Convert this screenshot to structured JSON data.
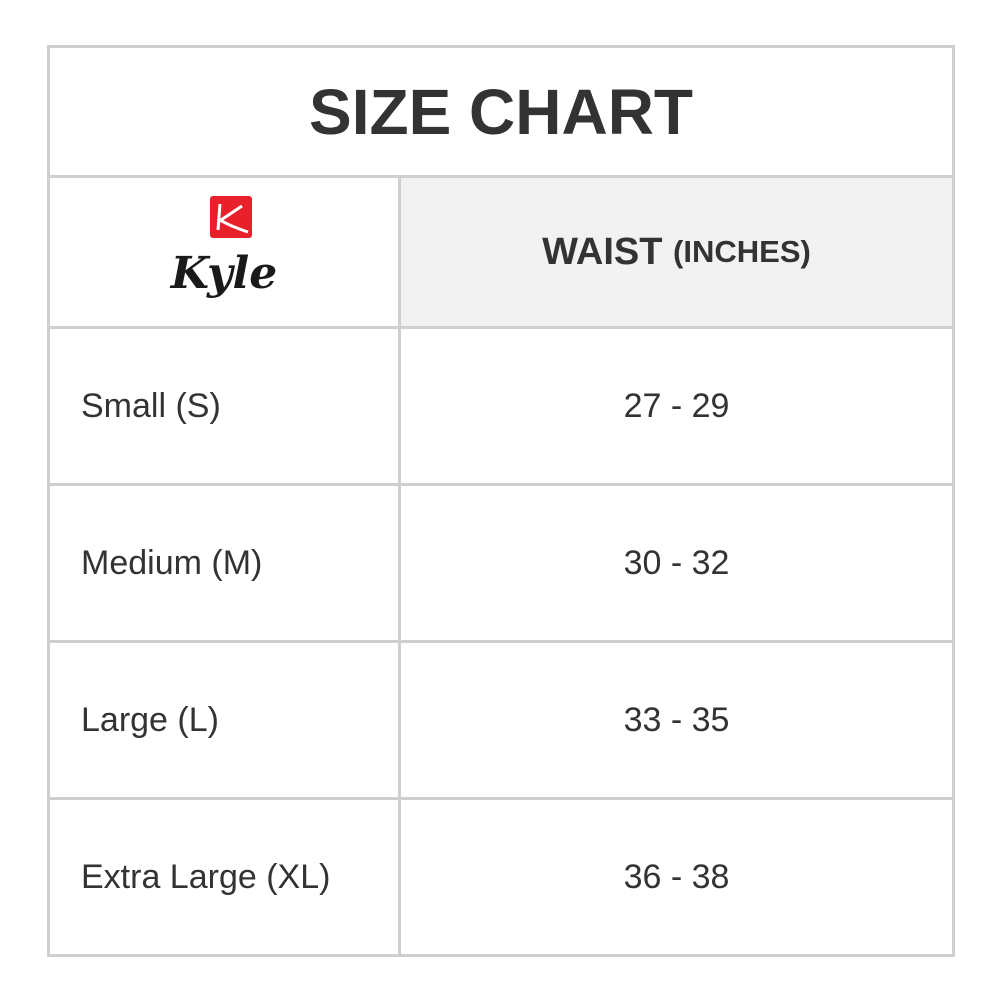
{
  "title": "SIZE CHART",
  "brand": {
    "name": "Kyle",
    "color": "#e8202a"
  },
  "header": {
    "column": "WAIST",
    "unit": "(INCHES)"
  },
  "rows": [
    {
      "size": "Small (S)",
      "waist": "27 - 29"
    },
    {
      "size": "Medium (M)",
      "waist": "30 - 32"
    },
    {
      "size": "Large (L)",
      "waist": "33 - 35"
    },
    {
      "size": "Extra Large (XL)",
      "waist": "36 - 38"
    }
  ]
}
